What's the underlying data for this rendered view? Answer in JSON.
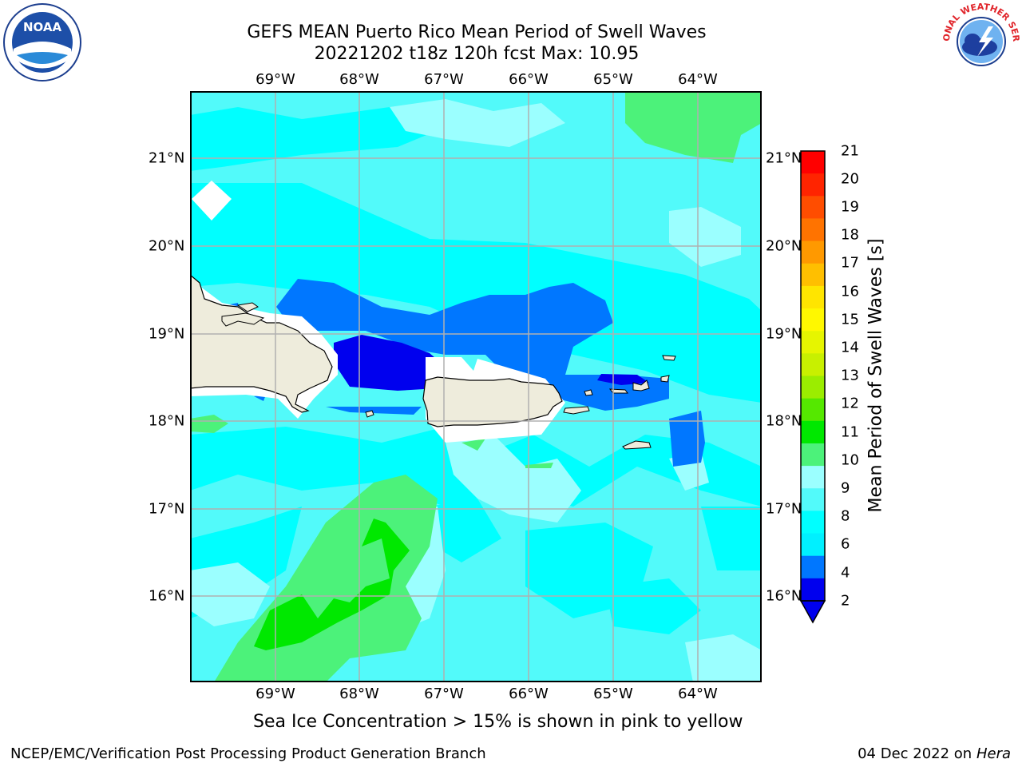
{
  "header": {
    "title_line1": "GEFS MEAN Puerto Rico Mean Period of Swell Waves",
    "title_line2": "20221202 t18z 120h fcst   Max: 10.95"
  },
  "map": {
    "lon_labels": [
      "69°W",
      "68°W",
      "67°W",
      "66°W",
      "65°W",
      "64°W"
    ],
    "lat_labels": [
      "21°N",
      "20°N",
      "19°N",
      "18°N",
      "17°N",
      "16°N"
    ],
    "land_color": "#eeecdc",
    "grid_color": "#b0b0b0"
  },
  "colorbar": {
    "label": "Mean Period of Swell Waves [s]",
    "ticks": [
      "21",
      "20",
      "19",
      "18",
      "17",
      "16",
      "15",
      "14",
      "13",
      "12",
      "11",
      "10",
      "9",
      "8",
      "6",
      "4",
      "2"
    ],
    "colors": [
      "#ff0000",
      "#ff2400",
      "#ff4d00",
      "#ff7300",
      "#ff9900",
      "#ffbf00",
      "#ffe500",
      "#fff800",
      "#e6f500",
      "#c8f000",
      "#9bed00",
      "#55e800",
      "#00e800",
      "#4cf27a",
      "#9bffff",
      "#52fafa",
      "#00ffff",
      "#00f0ff",
      "#0077ff",
      "#0000ee"
    ]
  },
  "footer": {
    "ice_note": "Sea Ice Concentration > 15% is shown in pink to yellow",
    "left": "NCEP/EMC/Verification Post Processing Product Generation Branch",
    "date": "04 Dec 2022 on",
    "machine": "Hera"
  },
  "logos": {
    "noaa_text": "NOAA",
    "nws_text": "NATIONAL WEATHER SERVICE"
  }
}
